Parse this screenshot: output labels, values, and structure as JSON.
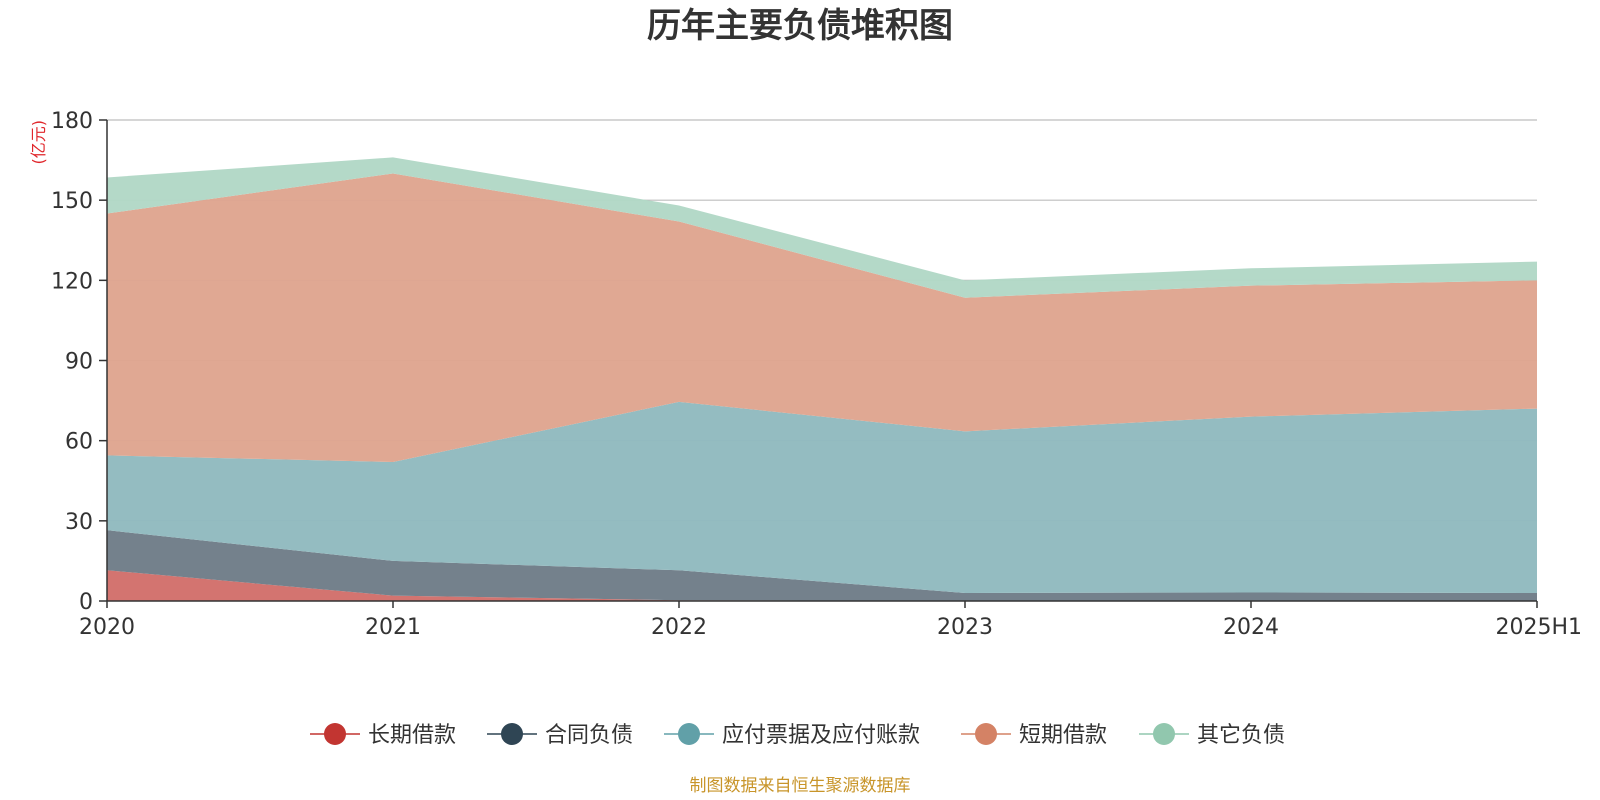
{
  "chart_data": {
    "type": "area",
    "stacked": true,
    "title": "历年主要负债堆积图",
    "unit": "(亿元)",
    "categories": [
      "2020",
      "2021",
      "2022",
      "2023",
      "2024",
      "2025H1"
    ],
    "ylim": [
      0,
      180
    ],
    "yticks": [
      "0",
      "30",
      "60",
      "90",
      "120",
      "150",
      "180"
    ],
    "grid": true,
    "legend_position": "bottom",
    "series": [
      {
        "name": "长期借款",
        "color": "#c23531",
        "fill": "#d26f6b",
        "values": [
          11.5,
          2,
          0.3,
          0,
          0,
          0
        ]
      },
      {
        "name": "合同负债",
        "color": "#2f4554",
        "fill": "#6f7d88",
        "values": [
          15,
          13,
          11.2,
          3,
          3.2,
          3
        ]
      },
      {
        "name": "应付票据及应付账款",
        "color": "#61a0a8",
        "fill": "#91babf",
        "values": [
          28,
          37,
          63,
          60.5,
          65.8,
          69
        ]
      },
      {
        "name": "短期借款",
        "color": "#d48265",
        "fill": "#dfa590",
        "values": [
          90.5,
          108,
          67.5,
          50,
          49,
          48
        ]
      },
      {
        "name": "其它负债",
        "color": "#91c7ae",
        "fill": "#b2d8c6",
        "values": [
          13.5,
          6,
          6,
          6.5,
          6.5,
          7
        ]
      }
    ],
    "source": "制图数据来自恒生聚源数据库"
  }
}
